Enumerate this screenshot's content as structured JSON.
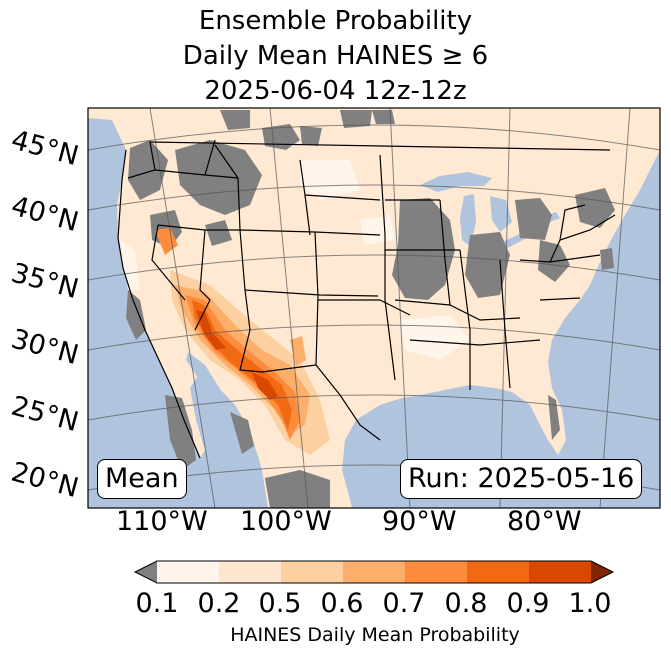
{
  "title": {
    "line1": "Ensemble Probability",
    "line2": "Daily Mean HAINES ≥ 6",
    "line3": "2025-06-04 12z-12z"
  },
  "labels": {
    "mean": "Mean",
    "run": "Run: 2025-05-16"
  },
  "latitude_labels": [
    "45°N",
    "40°N",
    "35°N",
    "30°N",
    "25°N",
    "20°N"
  ],
  "longitude_labels": [
    "110°W",
    "100°W",
    "90°W",
    "80°W"
  ],
  "colorbar": {
    "title": "HAINES Daily Mean Probability",
    "ticks": [
      "0.1",
      "0.2",
      "0.5",
      "0.6",
      "0.7",
      "0.8",
      "0.9",
      "1.0"
    ],
    "colors": [
      "#fff5eb",
      "#fee6ce",
      "#fdd0a2",
      "#fdae6b",
      "#fd8d3c",
      "#f16913",
      "#d94801",
      "#a63603"
    ],
    "under_color": "#808080",
    "over_color": "#7f2704"
  },
  "map_colors": {
    "ocean": "#b0c4de",
    "land": "#ffe9d2",
    "no_data": "#808080"
  }
}
